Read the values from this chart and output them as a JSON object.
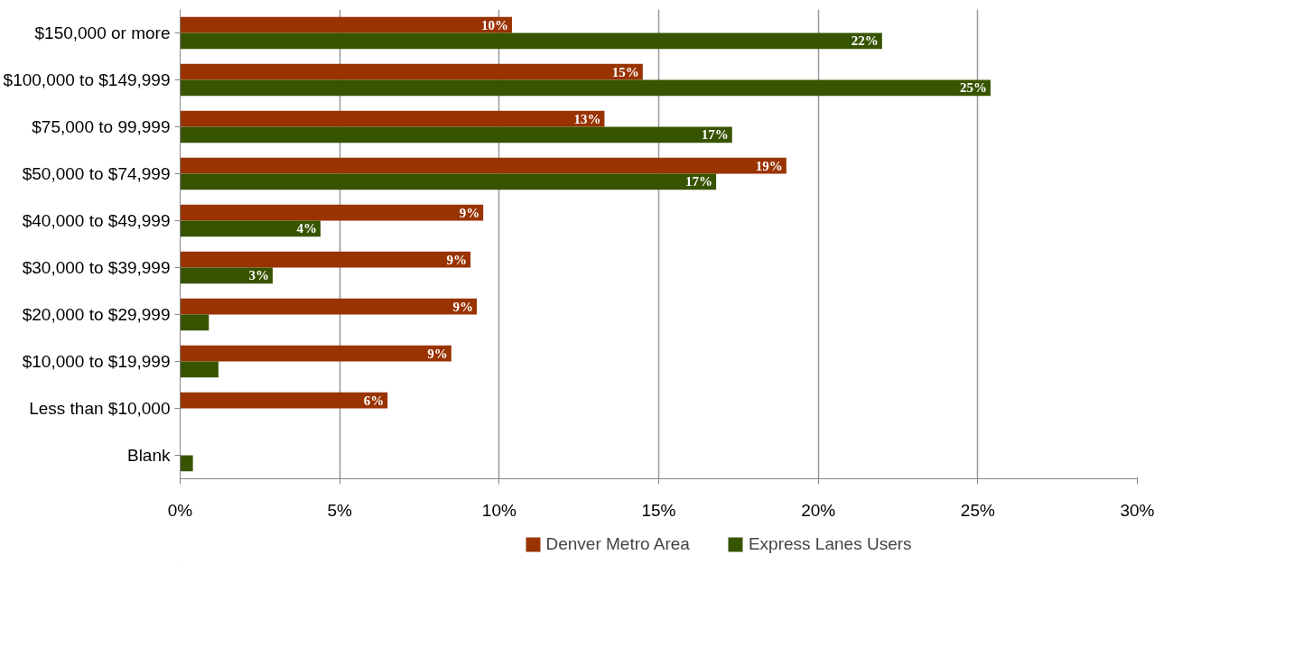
{
  "chart_data": {
    "type": "bar",
    "orientation": "horizontal",
    "categories": [
      "$150,000 or more",
      "$100,000 to $149,999",
      "$75,000 to 99,999",
      "$50,000 to $74,999",
      "$40,000 to $49,999",
      "$30,000 to $39,999",
      "$20,000 to $29,999",
      "$10,000 to $19,999",
      "Less than $10,000",
      "Blank"
    ],
    "series": [
      {
        "name": "Denver Metro Area",
        "color": "#993300",
        "values": [
          10.4,
          14.5,
          13.3,
          19.0,
          9.5,
          9.1,
          9.3,
          8.5,
          6.5,
          null
        ],
        "value_labels": [
          "10%",
          "15%",
          "13%",
          "19%",
          "9%",
          "9%",
          "9%",
          "9%",
          "6%",
          null
        ]
      },
      {
        "name": "Express Lanes Users",
        "color": "#375400",
        "values": [
          22.0,
          25.4,
          17.3,
          16.8,
          4.4,
          2.9,
          0.9,
          1.2,
          null,
          0.4
        ],
        "value_labels": [
          "22%",
          "25%",
          "17%",
          "17%",
          "4%",
          "3%",
          null,
          null,
          null,
          null
        ]
      }
    ],
    "xlim": [
      0,
      30
    ],
    "xticks": [
      {
        "value": 0,
        "label": "0%"
      },
      {
        "value": 5,
        "label": "5%"
      },
      {
        "value": 10,
        "label": "10%"
      },
      {
        "value": 15,
        "label": "15%"
      },
      {
        "value": 20,
        "label": "20%"
      },
      {
        "value": 25,
        "label": "25%"
      },
      {
        "value": 30,
        "label": "30%"
      }
    ],
    "grid": "x",
    "legend": "bottom"
  }
}
